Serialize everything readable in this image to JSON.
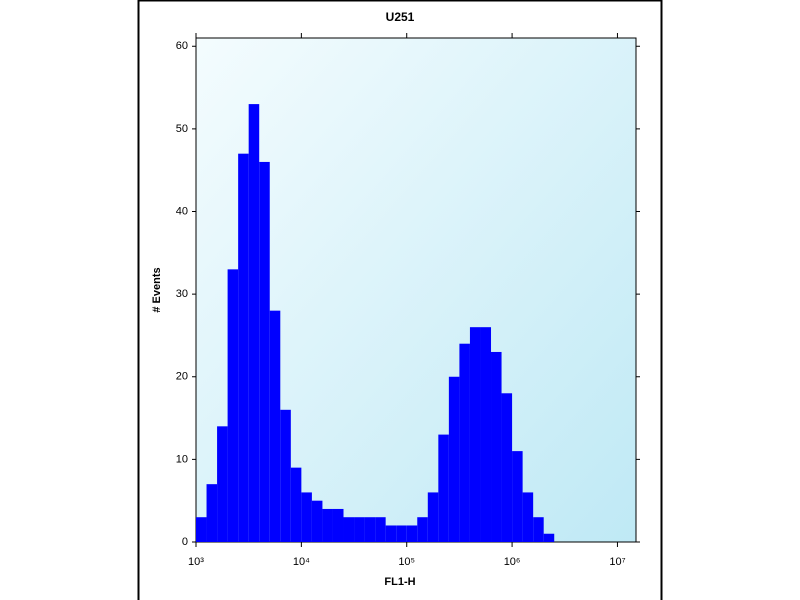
{
  "chart_data": {
    "type": "histogram",
    "title": "U251",
    "xlabel": "FL1-H",
    "ylabel": "# Events",
    "xscale": "log",
    "color": "#0000ff",
    "bins": [
      1000,
      1259,
      1585,
      1995,
      2512,
      3162,
      3981,
      5012,
      6310,
      7943,
      10000,
      12589,
      15849,
      19953,
      25119,
      31623,
      39811,
      50119,
      63096,
      79433,
      100000,
      125893,
      158489,
      199526,
      251189,
      316228,
      398107,
      501187,
      630957,
      794328,
      1000000,
      1258925,
      1584893,
      1995262,
      2511886,
      3162278,
      3981072,
      5011872,
      6309573,
      7943282,
      10000000,
      12589254
    ],
    "values": [
      3,
      7,
      14,
      33,
      47,
      53,
      46,
      28,
      16,
      9,
      6,
      5,
      4,
      4,
      3,
      3,
      3,
      3,
      2,
      2,
      2,
      3,
      6,
      13,
      20,
      24,
      26,
      26,
      23,
      18,
      11,
      6,
      3,
      1,
      0,
      0,
      0,
      0,
      0,
      0,
      0
    ],
    "xlim": [
      1000,
      15000000
    ],
    "xticks": [
      {
        "value": 1000,
        "label": "10³"
      },
      {
        "value": 10000,
        "label": "10⁴"
      },
      {
        "value": 100000,
        "label": "10⁵"
      },
      {
        "value": 1000000,
        "label": "10⁶"
      },
      {
        "value": 10000000,
        "label": "10⁷"
      }
    ],
    "ylim": [
      0,
      61
    ],
    "yticks": [
      0,
      10,
      20,
      30,
      40,
      50,
      60
    ]
  }
}
